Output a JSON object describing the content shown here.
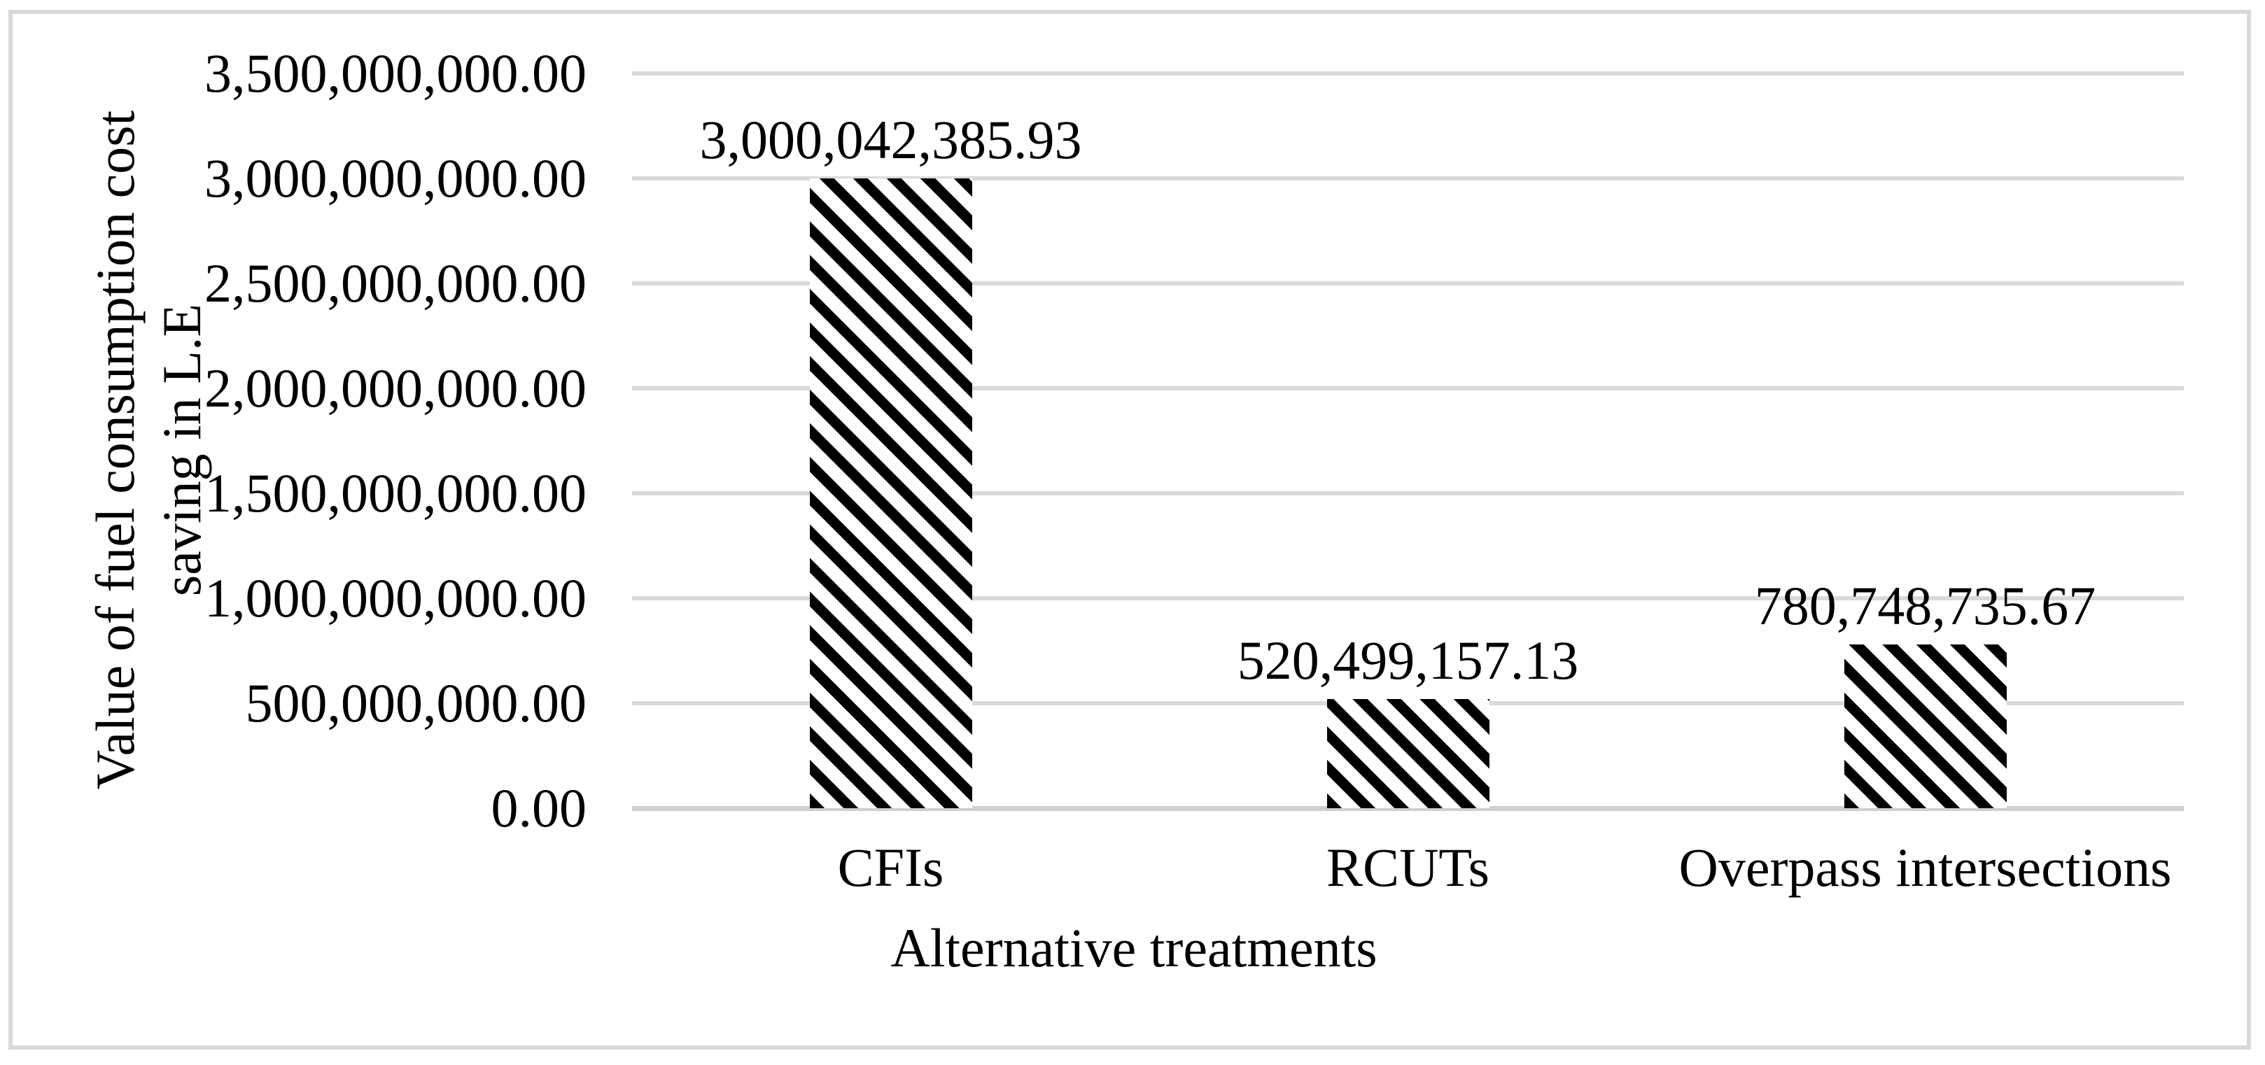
{
  "chart_data": {
    "type": "bar",
    "title": "",
    "categories": [
      "CFIs",
      "RCUTs",
      "Overpass intersections"
    ],
    "values": [
      3000042385.93,
      520499157.13,
      780748735.67
    ],
    "data_labels": [
      "3,000,042,385.93",
      "520,499,157.13",
      "780,748,735.67"
    ],
    "xlabel": "Alternative treatments",
    "ylabel": "Value of fuel consumption cost saving in L.E",
    "ylabel_lines": [
      "Value of fuel consumption cost",
      "saving in L.E"
    ],
    "ylim": [
      0,
      3500000000
    ],
    "ytick_step": 500000000,
    "ytick_labels_bottom_to_top": [
      "0.00",
      "500,000,000.00",
      "1,000,000,000.00",
      "1,500,000,000.00",
      "2,000,000,000.00",
      "2,500,000,000.00",
      "3,000,000,000.00",
      "3,500,000,000.00"
    ],
    "grid": true,
    "legend_position": "none",
    "bar_pattern": "wide-downward-diagonal-stripes",
    "colors": {
      "stripe": "#000000",
      "background": "#ffffff",
      "gridline": "#d9d9d9",
      "axis_line": "#cfcfcf",
      "chart_border": "#d9d9d9",
      "text": "#000000"
    }
  }
}
